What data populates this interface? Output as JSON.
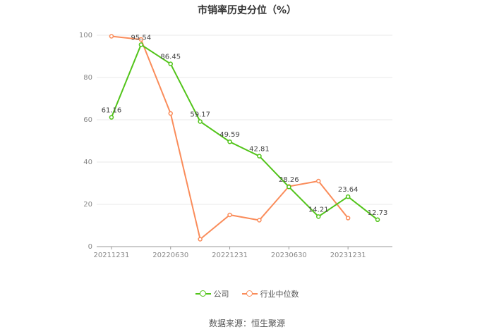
{
  "chart_data": {
    "type": "line",
    "title": "市销率历史分位（%）",
    "ylim": [
      0,
      100
    ],
    "yticks": [
      0,
      20,
      40,
      60,
      80,
      100
    ],
    "x_tick_labels": [
      "20211231",
      "20220630",
      "20221231",
      "20230630",
      "20231231"
    ],
    "grid": true,
    "legend_position": "bottom",
    "series": [
      {
        "name": "公司",
        "color": "#52c41a",
        "values": [
          61.16,
          95.54,
          86.45,
          59.17,
          49.59,
          42.81,
          28.26,
          14.21,
          23.64,
          12.73
        ],
        "labels": [
          "61.16",
          "95.54",
          "86.45",
          "59.17",
          "49.59",
          "42.81",
          "28.26",
          "14.21",
          "23.64",
          "12.73"
        ]
      },
      {
        "name": "行业中位数",
        "color": "#fa8c5a",
        "values": [
          99.5,
          98.0,
          63.0,
          3.5,
          15.0,
          12.5,
          28.5,
          31.0,
          13.5,
          null
        ]
      }
    ]
  },
  "source_text": "数据来源：恒生聚源"
}
